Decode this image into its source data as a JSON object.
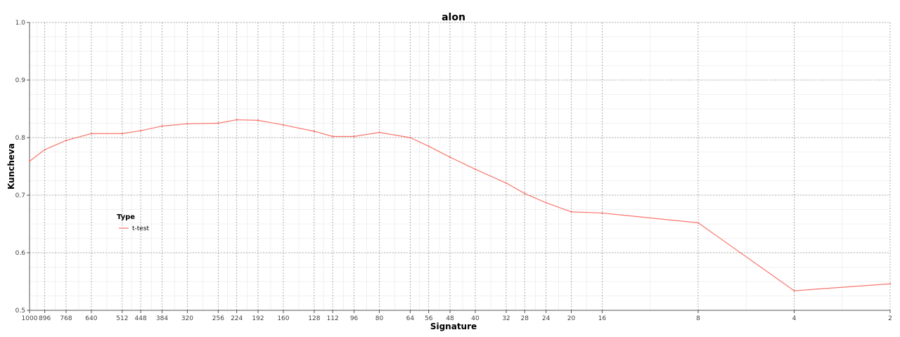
{
  "chart_data": {
    "type": "line",
    "title": "alon",
    "xlabel": "Signature",
    "ylabel": "Kuncheva",
    "ylim": [
      0.5,
      1.0
    ],
    "y_ticks": [
      "0.5",
      "0.6",
      "0.7",
      "0.8",
      "0.9",
      "1.0"
    ],
    "x_categories": [
      "1000",
      "896",
      "768",
      "640",
      "512",
      "448",
      "384",
      "320",
      "256",
      "224",
      "192",
      "160",
      "128",
      "112",
      "96",
      "80",
      "64",
      "56",
      "48",
      "40",
      "32",
      "28",
      "24",
      "20",
      "16",
      "8",
      "4",
      "2"
    ],
    "legend": {
      "title": "Type",
      "entries": [
        "t-test"
      ],
      "placement": "left-middle"
    },
    "series": [
      {
        "name": "t-test",
        "color": "#f8766d",
        "values": [
          0.759,
          0.779,
          0.795,
          0.807,
          0.807,
          0.812,
          0.82,
          0.824,
          0.825,
          0.831,
          0.83,
          0.822,
          0.811,
          0.802,
          0.802,
          0.809,
          0.8,
          0.785,
          0.766,
          0.745,
          0.721,
          0.703,
          0.687,
          0.671,
          0.669,
          0.652,
          0.534,
          0.546
        ]
      }
    ],
    "grid": true
  }
}
